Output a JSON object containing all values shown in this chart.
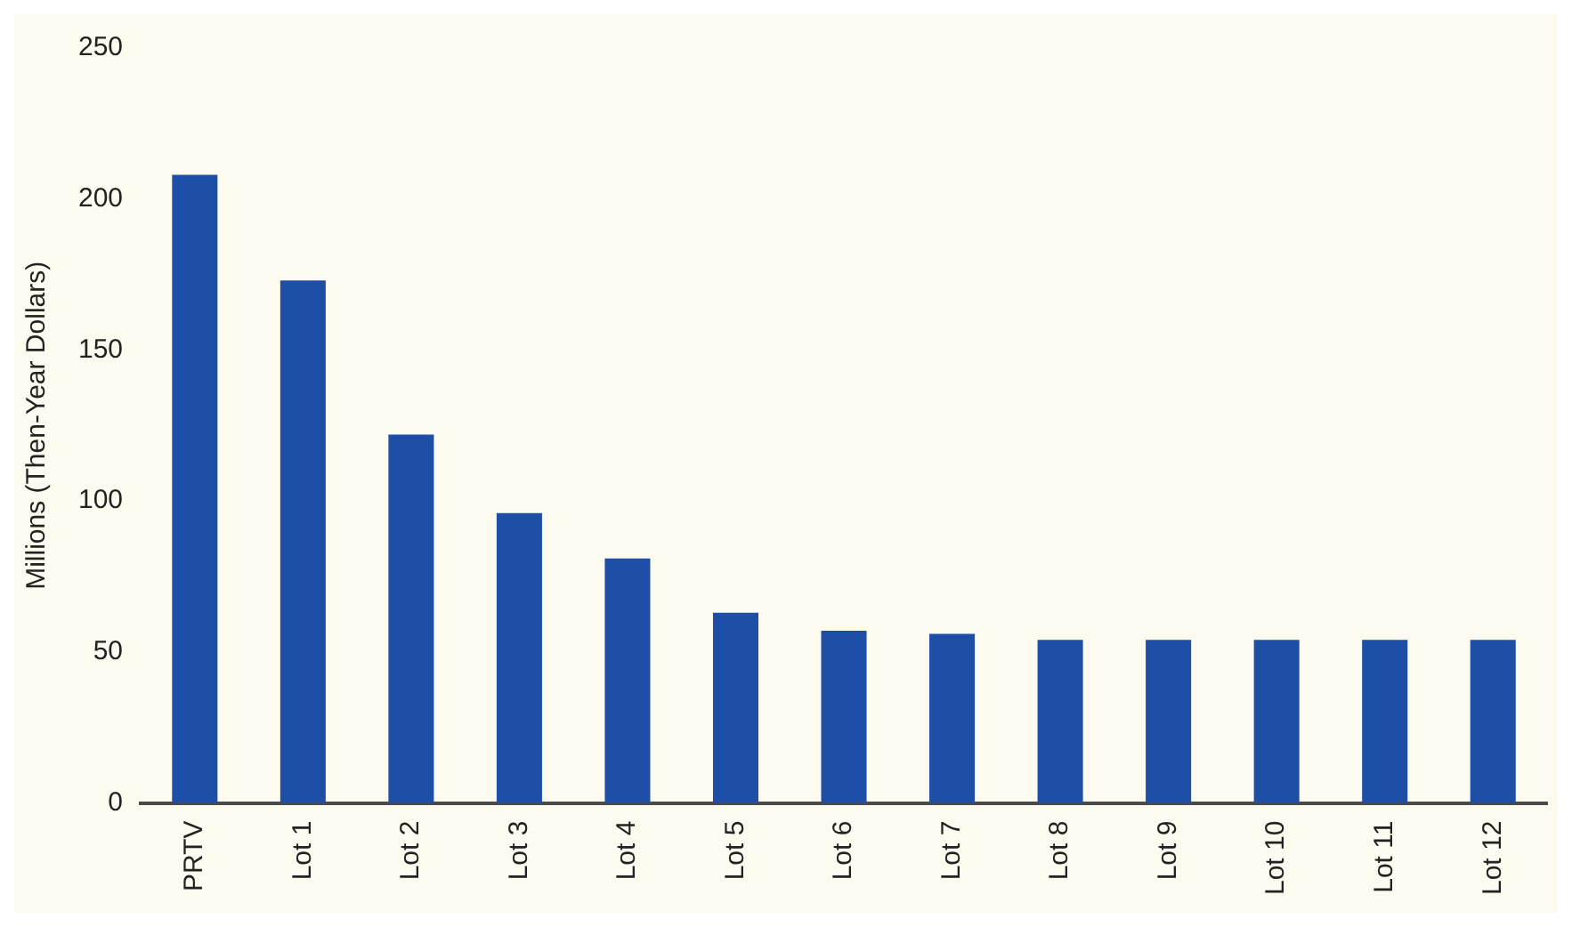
{
  "chart_data": {
    "type": "bar",
    "ylabel": "Millions (Then-Year Dollars)",
    "categories": [
      "PRTV",
      "Lot 1",
      "Lot 2",
      "Lot 3",
      "Lot 4",
      "Lot 5",
      "Lot 6",
      "Lot 7",
      "Lot 8",
      "Lot 9",
      "Lot 10",
      "Lot 11",
      "Lot 12"
    ],
    "values": [
      208,
      173,
      122,
      96,
      81,
      63,
      57,
      56,
      54,
      54,
      54,
      54,
      54
    ],
    "color": "#1f4ea6",
    "ylim": [
      0,
      250
    ],
    "yticks": [
      0,
      50,
      100,
      150,
      200,
      250
    ],
    "grid": false,
    "legend": false
  }
}
